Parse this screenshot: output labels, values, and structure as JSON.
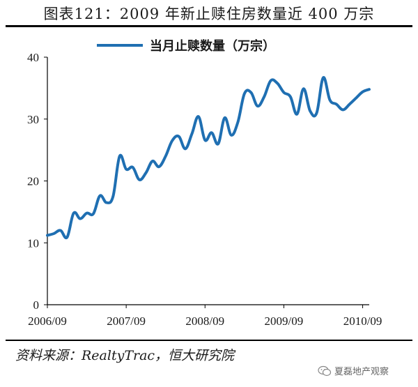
{
  "title": "图表121：2009 年新止赎住房数量近 400 万宗",
  "source": "资料来源：RealtyTrac，恒大研究院",
  "watermark": "夏磊地产观察",
  "colors": {
    "line": "#1f6fb2",
    "axis": "#000000"
  },
  "chart_data": {
    "type": "line",
    "y_ticks": [
      0,
      10,
      20,
      30,
      40
    ],
    "ylim": [
      0,
      40
    ],
    "x_tick_labels": [
      "2006/09",
      "2007/09",
      "2008/09",
      "2009/09",
      "2010/09"
    ],
    "x_months_range": [
      0,
      49
    ],
    "legend": "top-center",
    "grid": false,
    "series": [
      {
        "name": "当月止赎数量（万宗）",
        "color": "#1f6fb2",
        "x_months": [
          0,
          1,
          2,
          3,
          4,
          5,
          6,
          7,
          8,
          9,
          10,
          11,
          12,
          13,
          14,
          15,
          16,
          17,
          18,
          19,
          20,
          21,
          22,
          23,
          24,
          25,
          26,
          27,
          28,
          29,
          30,
          31,
          32,
          33,
          34,
          35,
          36,
          37,
          38,
          39,
          40,
          41,
          42,
          43,
          44,
          45,
          46,
          47,
          48,
          49
        ],
        "values": [
          11.2,
          11.5,
          12.0,
          10.9,
          14.8,
          13.9,
          14.8,
          14.7,
          17.6,
          16.5,
          17.5,
          24.0,
          21.9,
          22.2,
          20.2,
          21.3,
          23.2,
          22.3,
          24.0,
          26.5,
          27.2,
          25.2,
          27.6,
          30.4,
          26.6,
          27.8,
          26.0,
          30.2,
          27.4,
          29.5,
          34.1,
          34.3,
          32.1,
          33.6,
          36.2,
          35.8,
          34.3,
          33.6,
          30.8,
          34.9,
          31.3,
          31.0,
          36.7,
          33.1,
          32.4,
          31.5,
          32.4,
          33.4,
          34.4,
          34.8
        ]
      }
    ]
  }
}
